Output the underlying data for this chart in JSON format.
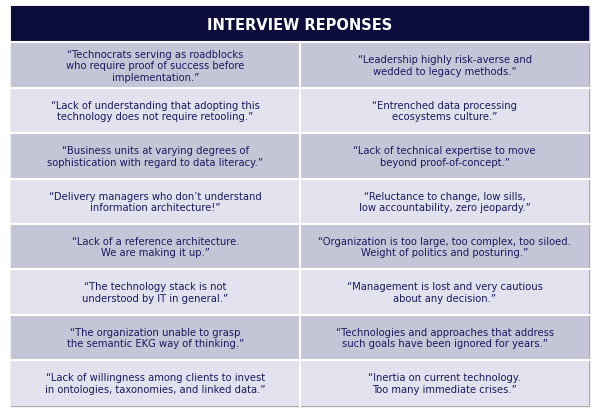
{
  "title": "INTERVIEW REPONSES",
  "title_bg": "#0d0d3b",
  "title_color": "#ffffff",
  "title_fontsize": 10.5,
  "row_color_odd": "#c5c5d8",
  "row_color_even": "#e2e2ee",
  "text_color": "#1a1a5e",
  "cell_divider_color": "#ffffff",
  "outer_border_color": "#aaaaaa",
  "cell_fontsize": 7.2,
  "fig_bg": "#ffffff",
  "rows": [
    [
      "“Technocrats serving as roadblocks\nwho require proof of success before\nimplementation.”",
      "“Leadership highly risk-averse and\nwedded to legacy methods.”"
    ],
    [
      "“Lack of understanding that adopting this\ntechnology does not require retooling.”",
      "“Entrenched data processing\necosystems culture.”"
    ],
    [
      "“Business units at varying degrees of\nsophistication with regard to data literacy.”",
      "“Lack of technical expertise to move\nbeyond proof-of-concept.”"
    ],
    [
      "“Delivery managers who don’t understand\ninformation architecture!”",
      "“Reluctance to change, low sills,\nlow accountability, zero jeopardy.”"
    ],
    [
      "“Lack of a reference architecture.\nWe are making it up.”",
      "“Organization is too large, too complex, too siloed.\nWeight of politics and posturing.”"
    ],
    [
      "“The technology stack is not\nunderstood by IT in general.”",
      "“Management is lost and very cautious\nabout any decision.”"
    ],
    [
      "“The organization unable to grasp\nthe semantic EKG way of thinking.”",
      "“Technologies and approaches that address\nsuch goals have been ignored for years.”"
    ],
    [
      "“Lack of willingness among clients to invest\nin ontologies, taxonomies, and linked data.”",
      "“Inertia on current technology.\nToo many immediate crises.”"
    ]
  ]
}
